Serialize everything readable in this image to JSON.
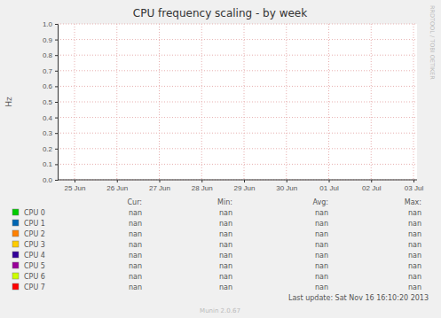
{
  "chart_data": {
    "type": "line",
    "title": "CPU frequency scaling - by week",
    "y_label": "Hz",
    "x": [
      "25 Jun",
      "26 Jun",
      "27 Jun",
      "28 Jun",
      "29 Jun",
      "30 Jun",
      "01 Jul",
      "02 Jul",
      "03 Jul"
    ],
    "ylim": [
      0,
      1
    ],
    "yticks": [
      {
        "value": 0,
        "label": "0.0"
      },
      {
        "value": 0.1,
        "label": "0.1"
      },
      {
        "value": 0.2,
        "label": "0.2"
      },
      {
        "value": 0.3,
        "label": "0.3"
      },
      {
        "value": 0.4,
        "label": "0.4"
      },
      {
        "value": 0.5,
        "label": "0.5"
      },
      {
        "value": 0.6,
        "label": "0.6"
      },
      {
        "value": 0.7,
        "label": "0.7"
      },
      {
        "value": 0.8,
        "label": "0.8"
      },
      {
        "value": 0.9,
        "label": "0.9"
      },
      {
        "value": 1,
        "label": "1.0"
      }
    ],
    "grid": true,
    "stats_columns": [
      "Cur:",
      "Min:",
      "Avg:",
      "Max:"
    ],
    "series": [
      {
        "name": "CPU 0",
        "color": "#00cc00",
        "values": [
          null,
          null,
          null,
          null,
          null,
          null,
          null,
          null,
          null
        ],
        "stats": [
          "nan",
          "nan",
          "nan",
          "nan"
        ]
      },
      {
        "name": "CPU 1",
        "color": "#0066b3",
        "values": [
          null,
          null,
          null,
          null,
          null,
          null,
          null,
          null,
          null
        ],
        "stats": [
          "nan",
          "nan",
          "nan",
          "nan"
        ]
      },
      {
        "name": "CPU 2",
        "color": "#ff8000",
        "values": [
          null,
          null,
          null,
          null,
          null,
          null,
          null,
          null,
          null
        ],
        "stats": [
          "nan",
          "nan",
          "nan",
          "nan"
        ]
      },
      {
        "name": "CPU 3",
        "color": "#ffcc00",
        "values": [
          null,
          null,
          null,
          null,
          null,
          null,
          null,
          null,
          null
        ],
        "stats": [
          "nan",
          "nan",
          "nan",
          "nan"
        ]
      },
      {
        "name": "CPU 4",
        "color": "#330099",
        "values": [
          null,
          null,
          null,
          null,
          null,
          null,
          null,
          null,
          null
        ],
        "stats": [
          "nan",
          "nan",
          "nan",
          "nan"
        ]
      },
      {
        "name": "CPU 5",
        "color": "#990099",
        "values": [
          null,
          null,
          null,
          null,
          null,
          null,
          null,
          null,
          null
        ],
        "stats": [
          "nan",
          "nan",
          "nan",
          "nan"
        ]
      },
      {
        "name": "CPU 6",
        "color": "#ccff00",
        "values": [
          null,
          null,
          null,
          null,
          null,
          null,
          null,
          null,
          null
        ],
        "stats": [
          "nan",
          "nan",
          "nan",
          "nan"
        ]
      },
      {
        "name": "CPU 7",
        "color": "#ff0000",
        "values": [
          null,
          null,
          null,
          null,
          null,
          null,
          null,
          null,
          null
        ],
        "stats": [
          "nan",
          "nan",
          "nan",
          "nan"
        ]
      }
    ],
    "footer": "Last update: Sat Nov 16 16:10:20 2013",
    "credit": "Munin 2.0.67",
    "side_label": "RRDTOOL / TOBI OETIKER"
  }
}
